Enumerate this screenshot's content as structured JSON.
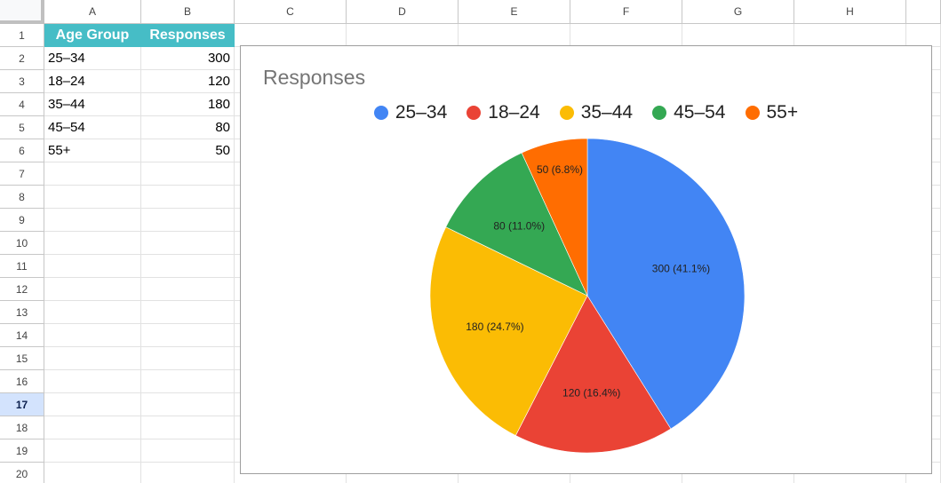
{
  "sheet": {
    "columns": [
      "A",
      "B",
      "C",
      "D",
      "E",
      "F",
      "G",
      "H"
    ],
    "rows": [
      "1",
      "2",
      "3",
      "4",
      "5",
      "6",
      "7",
      "8",
      "9",
      "10",
      "11",
      "12",
      "13",
      "14",
      "15",
      "16",
      "17",
      "18",
      "19",
      "20"
    ],
    "selected_row": "17",
    "table": {
      "headers": [
        "Age Group",
        "Responses"
      ],
      "rows": [
        [
          "25–34",
          "300"
        ],
        [
          "18–24",
          "120"
        ],
        [
          "35–44",
          "180"
        ],
        [
          "45–54",
          "80"
        ],
        [
          "55+",
          "50"
        ]
      ]
    }
  },
  "chart": {
    "title": "Responses",
    "legend": [
      {
        "label": "25–34",
        "color": "#4285f4"
      },
      {
        "label": "18–24",
        "color": "#ea4335"
      },
      {
        "label": "35–44",
        "color": "#fbbc04"
      },
      {
        "label": "45–54",
        "color": "#34a853"
      },
      {
        "label": "55+",
        "color": "#ff6d01"
      }
    ],
    "slice_labels": [
      "300 (41.1%)",
      "120 (16.4%)",
      "180 (24.7%)",
      "80 (11.0%)",
      "50 (6.8%)"
    ]
  },
  "chart_data": {
    "type": "pie",
    "title": "Responses",
    "categories": [
      "25–34",
      "18–24",
      "35–44",
      "45–54",
      "55+"
    ],
    "values": [
      300,
      120,
      180,
      80,
      50
    ],
    "percentages": [
      41.1,
      16.4,
      24.7,
      11.0,
      6.8
    ],
    "colors": [
      "#4285f4",
      "#ea4335",
      "#fbbc04",
      "#34a853",
      "#ff6d01"
    ],
    "legend_position": "top",
    "data_labels": "value (percent)"
  }
}
